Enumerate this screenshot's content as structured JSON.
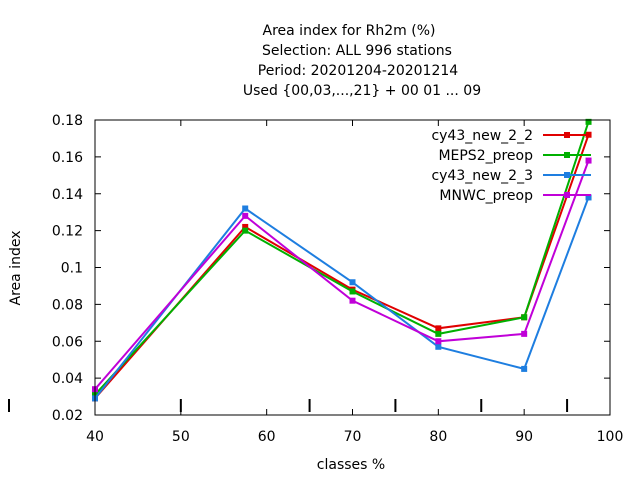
{
  "chart_data": {
    "type": "line",
    "title_lines": [
      "Area index  for Rh2m (%)",
      "Selection: ALL    996 stations",
      "Period: 20201204-20201214",
      "Used {00,03,...,21} + 00 01 ... 09"
    ],
    "xlabel": "classes %",
    "ylabel": "Area index",
    "xlim": [
      40,
      100
    ],
    "ylim": [
      0.02,
      0.18
    ],
    "x_ticks": [
      "40",
      "50",
      "60",
      "70",
      "80",
      "90",
      "100"
    ],
    "y_ticks": [
      "0.02",
      "0.04",
      "0.06",
      "0.08",
      "0.1",
      "0.12",
      "0.14",
      "0.16",
      "0.18"
    ],
    "bottom_bar_x": [
      50,
      65,
      75,
      85,
      95
    ],
    "legend_position": "top-right",
    "series": [
      {
        "name": "cy43_new_2_2",
        "color": "#e00000",
        "x": [
          40,
          57.5,
          70,
          80,
          90,
          97.5
        ],
        "y": [
          0.029,
          0.122,
          0.088,
          0.067,
          0.073,
          0.172
        ]
      },
      {
        "name": "MEPS2_preop",
        "color": "#00b000",
        "x": [
          40,
          57.5,
          70,
          80,
          90,
          97.5
        ],
        "y": [
          0.031,
          0.12,
          0.087,
          0.064,
          0.073,
          0.179
        ]
      },
      {
        "name": "cy43_new_2_3",
        "color": "#1e7ee0",
        "x": [
          40,
          57.5,
          70,
          80,
          90,
          97.5
        ],
        "y": [
          0.029,
          0.132,
          0.092,
          0.057,
          0.045,
          0.138
        ]
      },
      {
        "name": "MNWC_preop",
        "color": "#c000d8",
        "x": [
          40,
          57.5,
          70,
          80,
          90,
          97.5
        ],
        "y": [
          0.034,
          0.128,
          0.082,
          0.06,
          0.064,
          0.158
        ]
      }
    ]
  }
}
